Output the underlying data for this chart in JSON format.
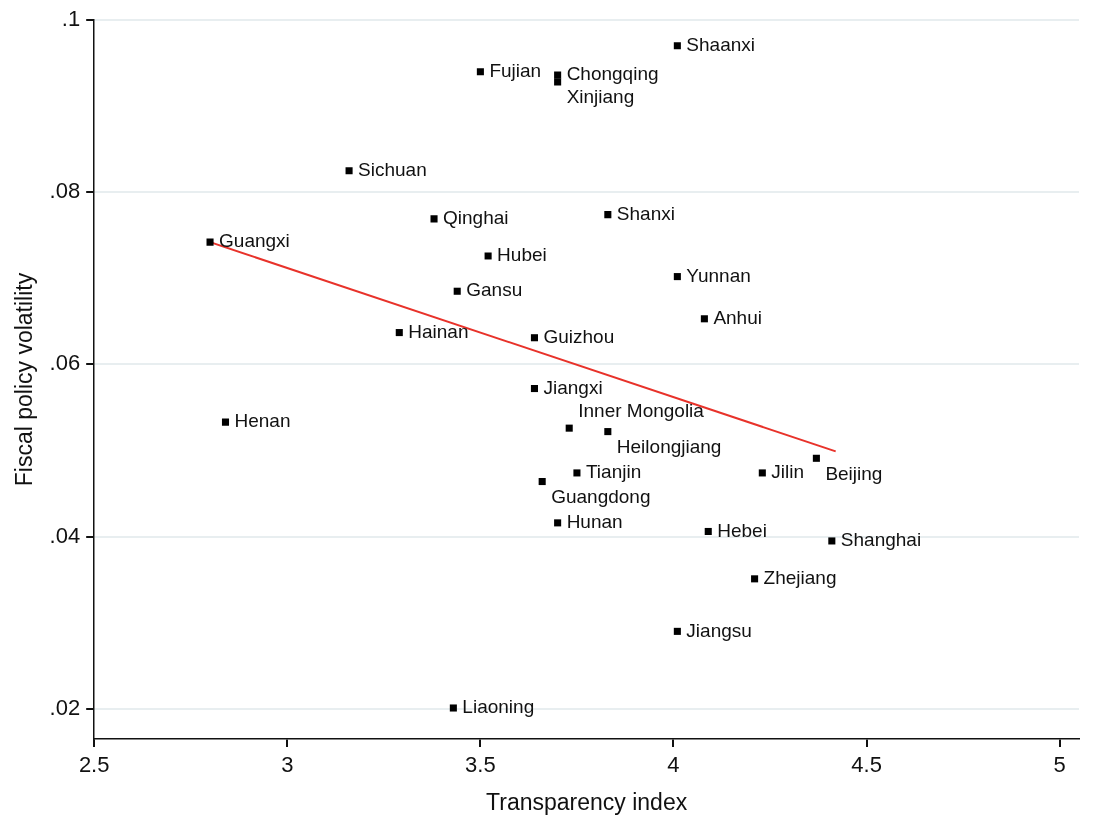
{
  "chart_data": {
    "type": "scatter",
    "xlabel": "Transparency index",
    "ylabel": "Fiscal policy volatility",
    "xlim": [
      2.5,
      5.05
    ],
    "xticks": [
      {
        "value": 2.5,
        "label": "2.5"
      },
      3,
      {
        "value": 3.5,
        "label": "3.5"
      },
      4,
      {
        "value": 4.5,
        "label": "4.5"
      },
      5
    ],
    "ylim": [
      0.0165,
      0.1
    ],
    "yticks": [
      {
        "value": 0.02,
        "label": ".02"
      },
      {
        "value": 0.04,
        "label": ".04"
      },
      {
        "value": 0.06,
        "label": ".06"
      },
      {
        "value": 0.08,
        "label": ".08"
      },
      {
        "value": 0.1,
        "label": ".1"
      }
    ],
    "grid": "y",
    "legend": false,
    "marker": "square",
    "series": [
      {
        "type": "scatter",
        "color": "#000000",
        "x": [
          4.01,
          3.5,
          3.7,
          3.7,
          3.16,
          3.38,
          3.83,
          2.8,
          3.52,
          4.01,
          3.44,
          4.08,
          3.29,
          3.64,
          3.64,
          2.84,
          3.73,
          3.83,
          4.37,
          3.75,
          4.23,
          3.66,
          3.7,
          4.09,
          4.41,
          4.21,
          4.01,
          3.43
        ],
        "values": [
          0.097,
          0.094,
          0.0936,
          0.0928,
          0.0825,
          0.0769,
          0.0774,
          0.0742,
          0.0726,
          0.0702,
          0.0685,
          0.0653,
          0.0637,
          0.0631,
          0.0572,
          0.0533,
          0.0526,
          0.0522,
          0.0491,
          0.0474,
          0.0474,
          0.0464,
          0.0416,
          0.0406,
          0.0395,
          0.0351,
          0.029,
          0.0201
        ],
        "value_labels": [
          "Shaanxi",
          "Fujian",
          "Chongqing",
          "Xinjiang",
          "Sichuan",
          "Qinghai",
          "Shanxi",
          "Guangxi",
          "Hubei",
          "Yunnan",
          "Gansu",
          "Anhui",
          "Hainan",
          "Guizhou",
          "Jiangxi",
          "Henan",
          "Inner Mongolia",
          "Heilongjiang",
          "Beijing",
          "Tianjin",
          "Jilin",
          "Guangdong",
          "Hunan",
          "Hebei",
          "Shanghai",
          "Zhejiang",
          "Jiangsu",
          "Liaoning"
        ]
      },
      {
        "type": "line",
        "color": "#e8322a",
        "marker": "none",
        "x": [
          2.8,
          4.42
        ],
        "values": [
          0.0742,
          0.0499
        ]
      }
    ]
  }
}
